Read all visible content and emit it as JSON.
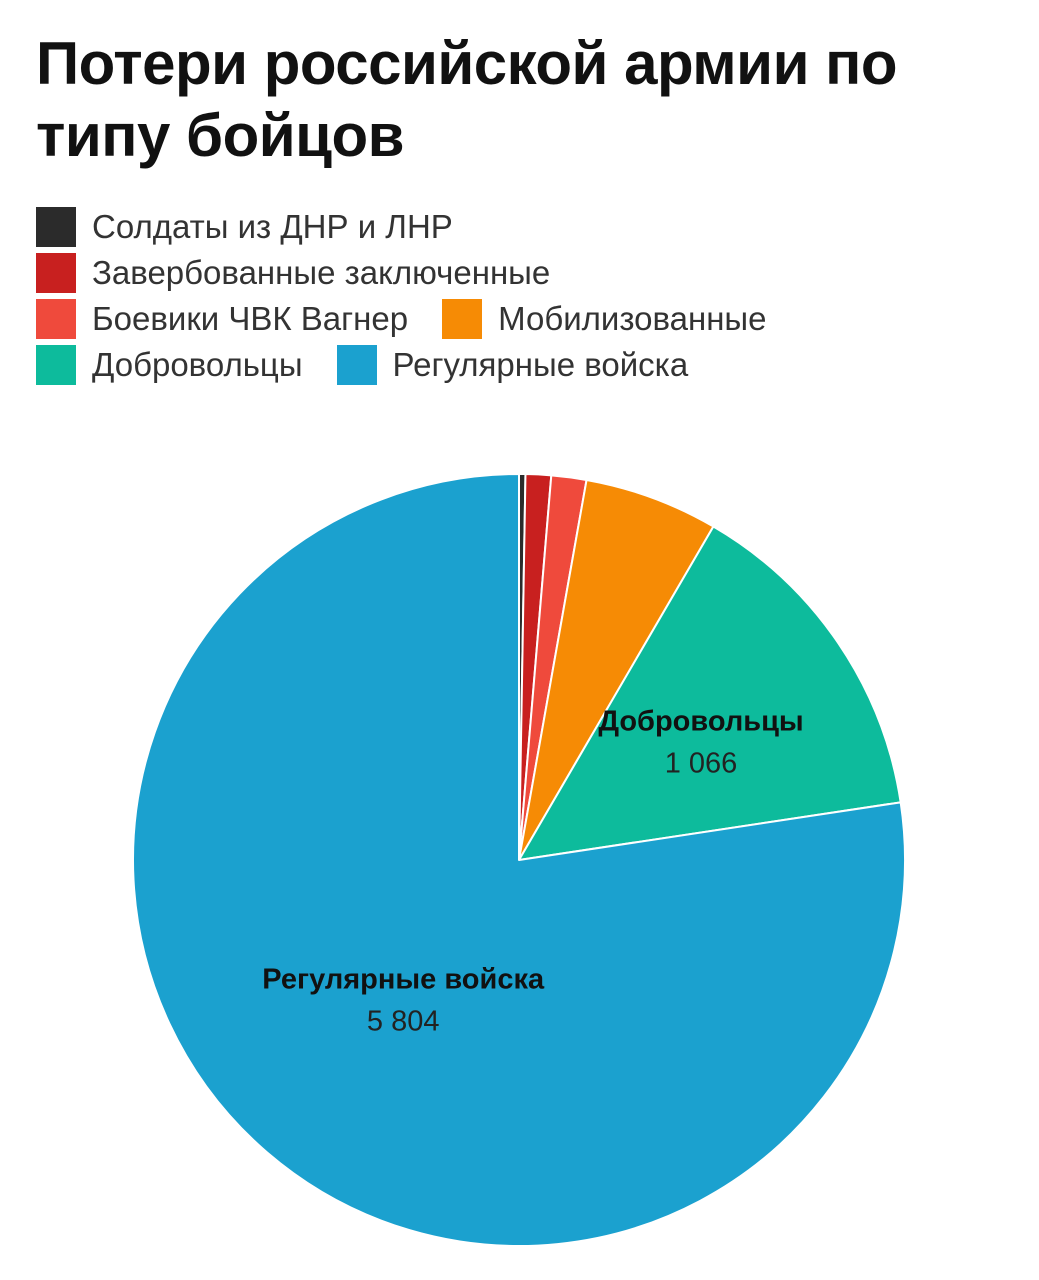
{
  "chart_data": {
    "type": "pie",
    "title": "Потери российской армии по типу бойцов",
    "legend_placement": "top",
    "slices": [
      {
        "name": "Солдаты из ДНР и ЛНР",
        "value": 20,
        "color": "#2b2b2b"
      },
      {
        "name": "Завербованные заключенные",
        "value": 80,
        "color": "#c8201f"
      },
      {
        "name": "Боевики ЧВК Вагнер",
        "value": 110,
        "color": "#ef4a3c"
      },
      {
        "name": "Мобилизованные",
        "value": 420,
        "color": "#f68b05"
      },
      {
        "name": "Добровольцы",
        "value": 1066,
        "value_label": "1 066",
        "color": "#0dbb9c"
      },
      {
        "name": "Регулярные войска",
        "value": 5804,
        "value_label": "5 804",
        "color": "#1ba1cf"
      }
    ],
    "legend_rows": [
      [
        0
      ],
      [
        1
      ],
      [
        2,
        3
      ],
      [
        4,
        5
      ]
    ],
    "data_labels": [
      {
        "slice": 4,
        "name": "Добровольцы",
        "value": "1 066"
      },
      {
        "slice": 5,
        "name": "Регулярные войска",
        "value": "5 804"
      }
    ]
  }
}
